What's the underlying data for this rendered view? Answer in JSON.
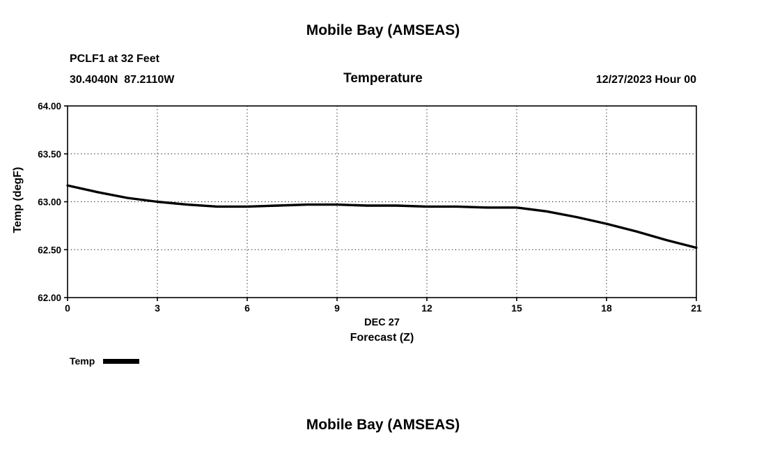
{
  "page": {
    "top_title": "Mobile Bay (AMSEAS)",
    "station": "PCLF1 at 32 Feet",
    "coords": "30.4040N  87.2110W",
    "subtitle": "Temperature",
    "datetime": "12/27/2023 Hour 00",
    "legend_label": "Temp",
    "bottom_title": "Mobile Bay (AMSEAS)"
  },
  "chart_data": {
    "type": "line",
    "title": "Temperature",
    "station": "PCLF1 at 32 Feet",
    "location": "30.4040N 87.2110W",
    "valid": "12/27/2023 Hour 00",
    "xlabel_line1": "DEC 27",
    "xlabel_line2": "Forecast (Z)",
    "ylabel": "Temp (degF)",
    "xlim": [
      0,
      21
    ],
    "ylim": [
      62.0,
      64.0
    ],
    "xticks": [
      0,
      3,
      6,
      9,
      12,
      15,
      18,
      21
    ],
    "yticks": [
      62.0,
      62.5,
      63.0,
      63.5,
      64.0
    ],
    "grid": "dotted",
    "legend_position": "bottom-left",
    "series": [
      {
        "name": "Temp",
        "color": "#000000",
        "x": [
          0,
          1,
          2,
          3,
          4,
          5,
          6,
          7,
          8,
          9,
          10,
          11,
          12,
          13,
          14,
          15,
          16,
          17,
          18,
          19,
          20,
          21
        ],
        "y": [
          63.17,
          63.1,
          63.04,
          63.0,
          62.97,
          62.95,
          62.95,
          62.96,
          62.97,
          62.97,
          62.96,
          62.96,
          62.95,
          62.95,
          62.94,
          62.94,
          62.9,
          62.84,
          62.77,
          62.69,
          62.6,
          62.52
        ]
      }
    ]
  }
}
